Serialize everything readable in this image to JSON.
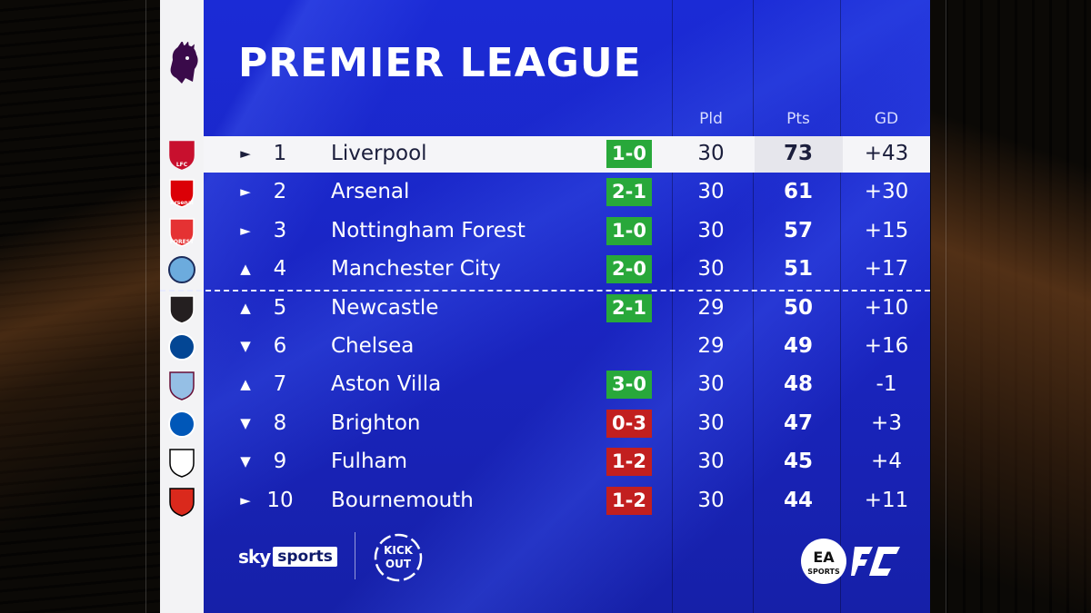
{
  "header": {
    "title": "PREMIER LEAGUE",
    "columns": {
      "pld": "Pld",
      "pts": "Pts",
      "gd": "GD"
    }
  },
  "table": {
    "rows": [
      {
        "arrow": "►",
        "pos": "1",
        "team": "Liverpool",
        "result": "1-0",
        "result_type": "win",
        "pld": "30",
        "pts": "73",
        "gd": "+43",
        "crest": "liverpool-crest-icon",
        "crest_text": "LFC"
      },
      {
        "arrow": "►",
        "pos": "2",
        "team": "Arsenal",
        "result": "2-1",
        "result_type": "win",
        "pld": "30",
        "pts": "61",
        "gd": "+30",
        "crest": "arsenal-crest-icon",
        "crest_text": "Arsenal"
      },
      {
        "arrow": "►",
        "pos": "3",
        "team": "Nottingham Forest",
        "result": "1-0",
        "result_type": "win",
        "pld": "30",
        "pts": "57",
        "gd": "+15",
        "crest": "nottingham-forest-crest-icon",
        "crest_text": "FOREST"
      },
      {
        "arrow": "▲",
        "pos": "4",
        "team": "Manchester City",
        "result": "2-0",
        "result_type": "win",
        "pld": "30",
        "pts": "51",
        "gd": "+17",
        "crest": "manchester-city-crest-icon",
        "crest_text": ""
      },
      {
        "arrow": "▲",
        "pos": "5",
        "team": "Newcastle",
        "result": "2-1",
        "result_type": "win",
        "pld": "29",
        "pts": "50",
        "gd": "+10",
        "crest": "newcastle-crest-icon",
        "crest_text": ""
      },
      {
        "arrow": "▼",
        "pos": "6",
        "team": "Chelsea",
        "result": "",
        "result_type": "none",
        "pld": "29",
        "pts": "49",
        "gd": "+16",
        "crest": "chelsea-crest-icon",
        "crest_text": ""
      },
      {
        "arrow": "▲",
        "pos": "7",
        "team": "Aston Villa",
        "result": "3-0",
        "result_type": "win",
        "pld": "30",
        "pts": "48",
        "gd": "-1",
        "crest": "aston-villa-crest-icon",
        "crest_text": ""
      },
      {
        "arrow": "▼",
        "pos": "8",
        "team": "Brighton",
        "result": "0-3",
        "result_type": "loss",
        "pld": "30",
        "pts": "47",
        "gd": "+3",
        "crest": "brighton-crest-icon",
        "crest_text": ""
      },
      {
        "arrow": "▼",
        "pos": "9",
        "team": "Fulham",
        "result": "1-2",
        "result_type": "loss",
        "pld": "30",
        "pts": "45",
        "gd": "+4",
        "crest": "fulham-crest-icon",
        "crest_text": ""
      },
      {
        "arrow": "►",
        "pos": "10",
        "team": "Bournemouth",
        "result": "1-2",
        "result_type": "loss",
        "pld": "30",
        "pts": "44",
        "gd": "+11",
        "crest": "bournemouth-crest-icon",
        "crest_text": ""
      }
    ]
  },
  "footer": {
    "sky": "sky",
    "sports": "sports",
    "kick_it_out": "KICK IT OUT",
    "ea": "EA",
    "ea_sports": "SPORTS",
    "fc": "FC"
  },
  "colors": {
    "panel_blue": "#1b2bd6",
    "win_green": "#28a83a",
    "loss_red": "#c21f1f",
    "highlight_row": "#f5f5f8"
  }
}
